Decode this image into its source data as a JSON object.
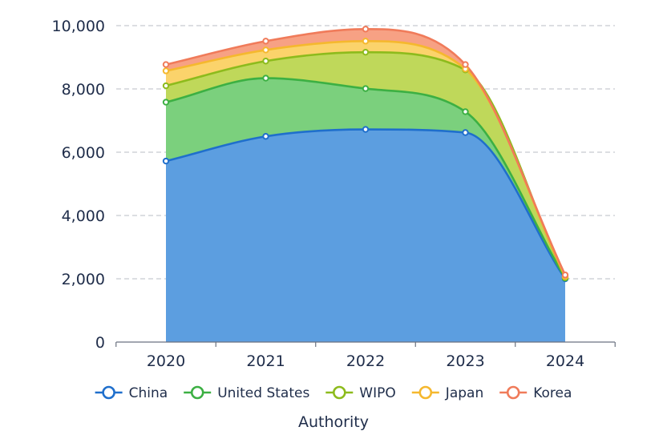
{
  "chart_data": {
    "type": "area",
    "stacked": true,
    "smooth": true,
    "x": [
      "2020",
      "2021",
      "2022",
      "2023",
      "2024"
    ],
    "series": [
      {
        "name": "China",
        "values": [
          5720,
          6500,
          6720,
          6620,
          2000
        ],
        "color": "#1f6fcc",
        "fill": "#5c9ee0"
      },
      {
        "name": "United States",
        "values": [
          1860,
          1840,
          1290,
          660,
          20
        ],
        "color": "#3cb043",
        "fill": "#7bd07d"
      },
      {
        "name": "WIPO",
        "values": [
          520,
          540,
          1150,
          1320,
          20
        ],
        "color": "#8dbb1c",
        "fill": "#bfd85a"
      },
      {
        "name": "Japan",
        "values": [
          470,
          350,
          350,
          30,
          30
        ],
        "color": "#f5b82e",
        "fill": "#fbd36b"
      },
      {
        "name": "Korea",
        "values": [
          200,
          280,
          380,
          140,
          50
        ],
        "color": "#f07b5a",
        "fill": "#f7a184"
      }
    ],
    "ylim": [
      0,
      10000
    ],
    "yticks": [
      0,
      2000,
      4000,
      6000,
      8000,
      10000
    ],
    "ytick_labels": [
      "0",
      "2,000",
      "4,000",
      "6,000",
      "8,000",
      "10,000"
    ],
    "xlabel": "Authority",
    "ylabel": "",
    "title": "",
    "grid": true,
    "legend_position": "bottom"
  }
}
